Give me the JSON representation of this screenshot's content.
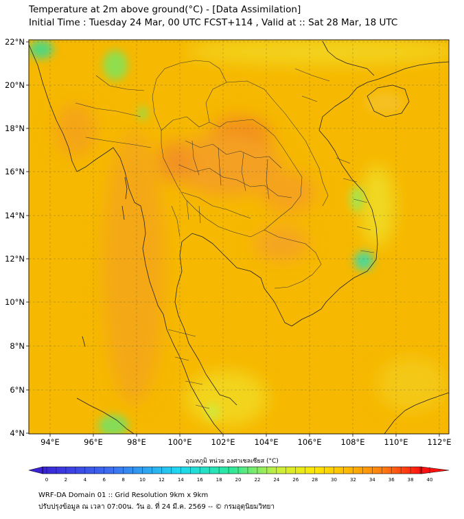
{
  "header": {
    "title": "Temperature at 2m above ground(°C) - [Data Assimilation]",
    "subtitle": "Initial Time : Tuesday 24 Mar, 00 UTC FCST+114 , Valid at :: Sat 28 Mar, 18 UTC"
  },
  "map": {
    "lat_labels": [
      "22°N",
      "20°N",
      "18°N",
      "16°N",
      "14°N",
      "12°N",
      "10°N",
      "8°N",
      "6°N",
      "4°N"
    ],
    "lon_labels": [
      "94°E",
      "96°E",
      "98°E",
      "100°E",
      "102°E",
      "104°E",
      "106°E",
      "108°E",
      "110°E",
      "112°E"
    ],
    "base_color": "#f6b800"
  },
  "colorbar": {
    "title": "อุณหภูมิ หน่วย องศาเซลเซียส (°C)",
    "ticks": [
      "0",
      "2",
      "4",
      "6",
      "8",
      "10",
      "12",
      "14",
      "16",
      "18",
      "20",
      "22",
      "24",
      "26",
      "28",
      "30",
      "32",
      "34",
      "36",
      "38",
      "40"
    ],
    "min": 0,
    "max": 40
  },
  "footer": {
    "line1": "WRF-DA Domain 01 :: Grid Resolution 9km x 9km",
    "line2": "ปรับปรุงข้อมูล ณ เวลา 07:00น. วัน อ. ที่ 24 มี.ค. 2569 -- © กรมอุตุนิยมวิทยา"
  }
}
